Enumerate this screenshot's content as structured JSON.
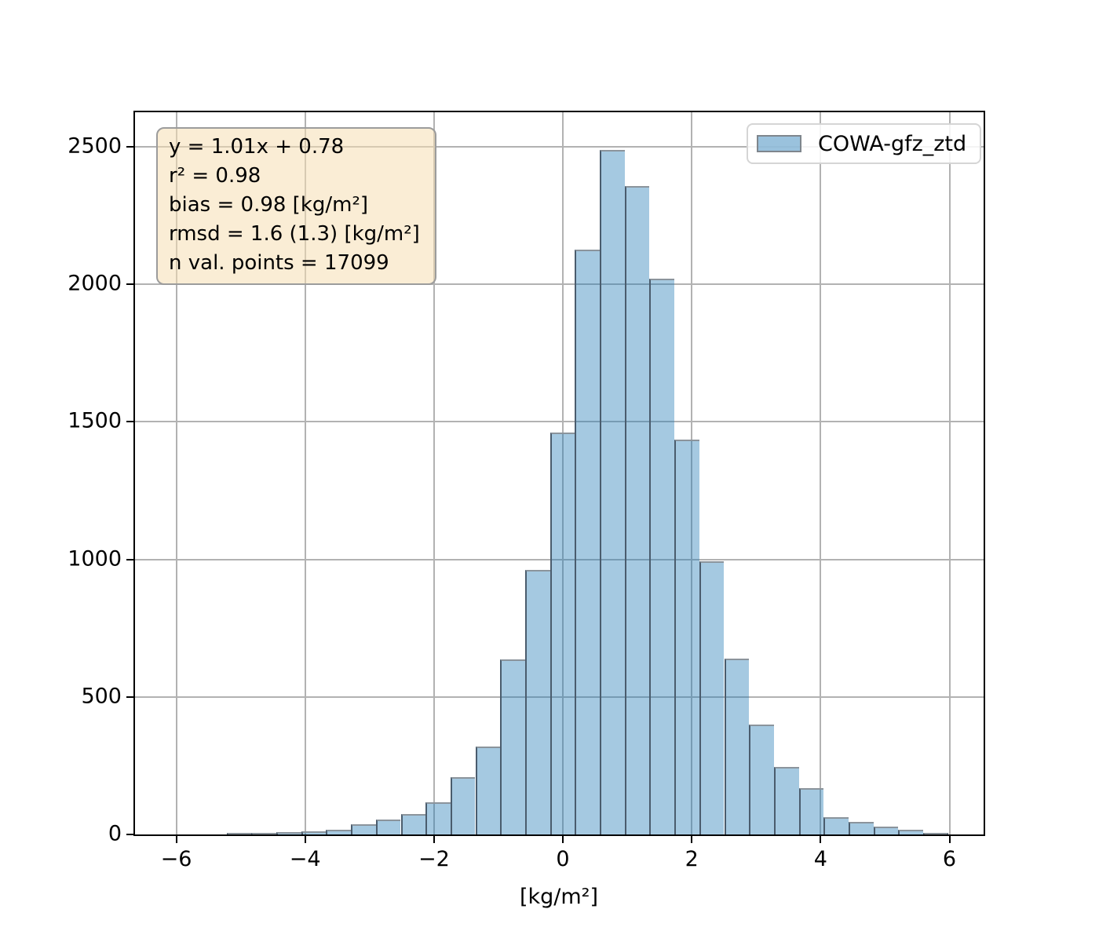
{
  "figure": {
    "background": "#ffffff"
  },
  "stats_box": {
    "lines": [
      "y = 1.01x + 0.78",
      "r² = 0.98",
      "bias = 0.98 [kg/m²]",
      "rmsd = 1.6 (1.3) [kg/m²]",
      "n val. points = 17099"
    ]
  },
  "legend": {
    "label": "COWA-gfz_ztd",
    "swatch_fill": "rgba(31,119,180,0.45)",
    "swatch_border": "#7f868d",
    "position": "upper right"
  },
  "chart_data": {
    "type": "bar",
    "subtype": "histogram",
    "title": "",
    "xlabel": "[kg/m²]",
    "ylabel": "",
    "bin_start": -5.22,
    "bin_width": 0.3862,
    "values": [
      4,
      2,
      8,
      11,
      18,
      36,
      53,
      75,
      118,
      208,
      321,
      637,
      962,
      1461,
      2126,
      2487,
      2357,
      2021,
      1434,
      992,
      639,
      400,
      245,
      168,
      64,
      47,
      30,
      17,
      7
    ],
    "xlim": [
      -6.64,
      6.53
    ],
    "ylim": [
      0,
      2625
    ],
    "xticks": [
      -6,
      -4,
      -2,
      0,
      2,
      4,
      6
    ],
    "xtick_labels": [
      "−6",
      "−4",
      "−2",
      "0",
      "2",
      "4",
      "6"
    ],
    "yticks": [
      0,
      500,
      1000,
      1500,
      2000,
      2500
    ],
    "ytick_labels": [
      "0",
      "500",
      "1000",
      "1500",
      "2000",
      "2500"
    ],
    "grid": true,
    "grid_color": "#b2b2b2",
    "bar_fill": "rgba(31,119,180,0.4)",
    "bar_edge_side": "#4a5c6d",
    "bar_edge_top": "#8b949c",
    "legend_entries": [
      "COWA-gfz_ztd"
    ]
  }
}
